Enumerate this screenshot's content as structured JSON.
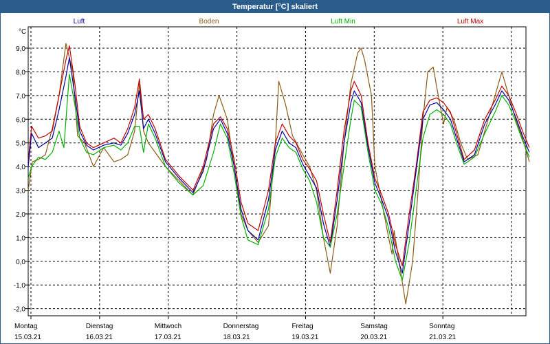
{
  "title": "Temperatur [°C] skaliert",
  "colors": {
    "titlebar": "#2a5d8c",
    "grid": "#000000"
  },
  "chart_data": {
    "type": "line",
    "title": "Temperatur [°C] skaliert",
    "ylabel": "°C",
    "ylim": [
      -2.3,
      9.9
    ],
    "yticks": [
      9.0,
      8.0,
      7.0,
      6.0,
      5.0,
      4.0,
      3.0,
      2.0,
      1.0,
      0.0,
      -1.0,
      -2.0
    ],
    "ytick_labels": [
      "9,0",
      "8,0",
      "7,0",
      "6,0",
      "5,0",
      "4,0",
      "3,0",
      "2,0",
      "1,0",
      "0,0",
      "-1,0",
      "-2,0"
    ],
    "x_unit": "days since Monday 15.03.21 00:00",
    "xlim": [
      0,
      7
    ],
    "xticks": [
      {
        "day": "Montag",
        "date": "15.03.21"
      },
      {
        "day": "Dienstag",
        "date": "16.03.21"
      },
      {
        "day": "Mittwoch",
        "date": "17.03.21"
      },
      {
        "day": "Donnerstag",
        "date": "18.03.21"
      },
      {
        "day": "Freitag",
        "date": "19.03.21"
      },
      {
        "day": "Samstag",
        "date": "20.03.21"
      },
      {
        "day": "Sonntag",
        "date": "21.03.21"
      }
    ],
    "grid": true,
    "legend_position": "top",
    "series": [
      {
        "name": "Boden",
        "color": "#8b5a14",
        "points": [
          [
            0,
            3.0
          ],
          [
            0.06,
            4.2
          ],
          [
            0.15,
            4.3
          ],
          [
            0.25,
            4.5
          ],
          [
            0.35,
            5.6
          ],
          [
            0.45,
            7.0
          ],
          [
            0.55,
            9.2
          ],
          [
            0.65,
            8.0
          ],
          [
            0.72,
            5.3
          ],
          [
            0.82,
            5.0
          ],
          [
            0.95,
            4.0
          ],
          [
            1.1,
            4.8
          ],
          [
            1.25,
            4.2
          ],
          [
            1.35,
            4.3
          ],
          [
            1.45,
            4.5
          ],
          [
            1.55,
            5.5
          ],
          [
            1.62,
            7.5
          ],
          [
            1.68,
            5.5
          ],
          [
            1.75,
            5.0
          ],
          [
            1.85,
            4.6
          ],
          [
            2.0,
            4.0
          ],
          [
            2.2,
            3.4
          ],
          [
            2.4,
            2.8
          ],
          [
            2.6,
            4.3
          ],
          [
            2.7,
            6.2
          ],
          [
            2.78,
            7.0
          ],
          [
            2.9,
            6.0
          ],
          [
            3.0,
            4.0
          ],
          [
            3.1,
            2.0
          ],
          [
            3.2,
            1.3
          ],
          [
            3.35,
            0.8
          ],
          [
            3.5,
            1.5
          ],
          [
            3.6,
            5.0
          ],
          [
            3.65,
            7.6
          ],
          [
            3.75,
            6.6
          ],
          [
            3.85,
            5.3
          ],
          [
            4.0,
            4.5
          ],
          [
            4.1,
            4.0
          ],
          [
            4.2,
            3.0
          ],
          [
            4.3,
            1.0
          ],
          [
            4.4,
            -0.5
          ],
          [
            4.5,
            1.5
          ],
          [
            4.6,
            5.0
          ],
          [
            4.7,
            7.5
          ],
          [
            4.8,
            8.8
          ],
          [
            4.85,
            9.0
          ],
          [
            4.9,
            8.5
          ],
          [
            5.0,
            7.0
          ],
          [
            5.05,
            4.0
          ],
          [
            5.15,
            2.5
          ],
          [
            5.25,
            1.0
          ],
          [
            5.3,
            0.3
          ],
          [
            5.33,
            1.3
          ],
          [
            5.4,
            0.0
          ],
          [
            5.5,
            -1.8
          ],
          [
            5.6,
            0.0
          ],
          [
            5.68,
            3.0
          ],
          [
            5.75,
            6.0
          ],
          [
            5.82,
            8.0
          ],
          [
            5.9,
            8.2
          ],
          [
            5.96,
            7.2
          ],
          [
            6.05,
            5.8
          ],
          [
            6.1,
            6.5
          ],
          [
            6.2,
            6.0
          ],
          [
            6.3,
            5.0
          ],
          [
            6.4,
            4.3
          ],
          [
            6.55,
            4.5
          ],
          [
            6.7,
            6.0
          ],
          [
            6.8,
            7.0
          ],
          [
            6.9,
            8.0
          ],
          [
            7.0,
            7.0
          ],
          [
            7.1,
            6.0
          ],
          [
            7.2,
            5.2
          ],
          [
            7.3,
            4.2
          ]
        ]
      },
      {
        "name": "Luft Max",
        "color": "#c00000",
        "points": [
          [
            0,
            4.2
          ],
          [
            0.05,
            5.7
          ],
          [
            0.15,
            5.2
          ],
          [
            0.25,
            5.3
          ],
          [
            0.35,
            5.5
          ],
          [
            0.45,
            7.0
          ],
          [
            0.55,
            8.5
          ],
          [
            0.6,
            9.1
          ],
          [
            0.68,
            7.5
          ],
          [
            0.75,
            5.7
          ],
          [
            0.85,
            5.0
          ],
          [
            0.95,
            4.8
          ],
          [
            1.1,
            5.0
          ],
          [
            1.25,
            5.2
          ],
          [
            1.35,
            5.0
          ],
          [
            1.45,
            5.6
          ],
          [
            1.55,
            6.5
          ],
          [
            1.62,
            7.7
          ],
          [
            1.68,
            6.0
          ],
          [
            1.75,
            6.2
          ],
          [
            1.85,
            5.6
          ],
          [
            2.0,
            4.3
          ],
          [
            2.2,
            3.6
          ],
          [
            2.4,
            3.0
          ],
          [
            2.55,
            4.0
          ],
          [
            2.7,
            5.8
          ],
          [
            2.8,
            6.1
          ],
          [
            2.9,
            5.6
          ],
          [
            3.0,
            4.3
          ],
          [
            3.1,
            2.5
          ],
          [
            3.2,
            1.6
          ],
          [
            3.35,
            1.3
          ],
          [
            3.5,
            3.0
          ],
          [
            3.6,
            5.0
          ],
          [
            3.7,
            5.8
          ],
          [
            3.8,
            5.3
          ],
          [
            3.9,
            5.0
          ],
          [
            4.0,
            4.3
          ],
          [
            4.1,
            3.9
          ],
          [
            4.2,
            3.4
          ],
          [
            4.3,
            2.0
          ],
          [
            4.4,
            0.8
          ],
          [
            4.5,
            3.0
          ],
          [
            4.6,
            5.5
          ],
          [
            4.7,
            7.2
          ],
          [
            4.75,
            7.6
          ],
          [
            4.85,
            7.0
          ],
          [
            4.95,
            5.0
          ],
          [
            5.05,
            3.5
          ],
          [
            5.15,
            2.8
          ],
          [
            5.25,
            2.0
          ],
          [
            5.35,
            0.7
          ],
          [
            5.45,
            -0.2
          ],
          [
            5.55,
            2.0
          ],
          [
            5.65,
            4.0
          ],
          [
            5.75,
            6.3
          ],
          [
            5.85,
            6.8
          ],
          [
            5.95,
            6.9
          ],
          [
            6.05,
            6.7
          ],
          [
            6.15,
            6.3
          ],
          [
            6.25,
            5.3
          ],
          [
            6.35,
            4.3
          ],
          [
            6.5,
            4.7
          ],
          [
            6.65,
            6.0
          ],
          [
            6.8,
            6.8
          ],
          [
            6.9,
            7.4
          ],
          [
            7.0,
            7.0
          ],
          [
            7.1,
            6.3
          ],
          [
            7.2,
            5.5
          ],
          [
            7.3,
            4.8
          ]
        ]
      },
      {
        "name": "Luft",
        "color": "#0000a0",
        "points": [
          [
            0,
            4.0
          ],
          [
            0.05,
            5.4
          ],
          [
            0.15,
            4.8
          ],
          [
            0.25,
            5.0
          ],
          [
            0.35,
            5.2
          ],
          [
            0.45,
            6.4
          ],
          [
            0.55,
            7.8
          ],
          [
            0.6,
            8.6
          ],
          [
            0.68,
            7.0
          ],
          [
            0.75,
            5.5
          ],
          [
            0.85,
            4.9
          ],
          [
            0.95,
            4.7
          ],
          [
            1.1,
            4.9
          ],
          [
            1.25,
            5.0
          ],
          [
            1.35,
            4.9
          ],
          [
            1.45,
            5.4
          ],
          [
            1.55,
            6.2
          ],
          [
            1.62,
            7.2
          ],
          [
            1.68,
            5.6
          ],
          [
            1.75,
            6.0
          ],
          [
            1.85,
            5.4
          ],
          [
            2.0,
            4.2
          ],
          [
            2.2,
            3.5
          ],
          [
            2.4,
            2.9
          ],
          [
            2.55,
            3.8
          ],
          [
            2.7,
            5.6
          ],
          [
            2.8,
            6.0
          ],
          [
            2.9,
            5.4
          ],
          [
            3.0,
            4.0
          ],
          [
            3.1,
            2.2
          ],
          [
            3.2,
            1.3
          ],
          [
            3.35,
            0.9
          ],
          [
            3.5,
            2.6
          ],
          [
            3.6,
            4.7
          ],
          [
            3.7,
            5.5
          ],
          [
            3.8,
            5.0
          ],
          [
            3.9,
            4.8
          ],
          [
            4.0,
            4.1
          ],
          [
            4.1,
            3.6
          ],
          [
            4.2,
            3.1
          ],
          [
            4.3,
            1.6
          ],
          [
            4.4,
            0.6
          ],
          [
            4.5,
            2.6
          ],
          [
            4.6,
            5.0
          ],
          [
            4.7,
            6.7
          ],
          [
            4.75,
            7.2
          ],
          [
            4.85,
            6.7
          ],
          [
            4.95,
            4.8
          ],
          [
            5.05,
            3.3
          ],
          [
            5.15,
            2.6
          ],
          [
            5.25,
            1.8
          ],
          [
            5.35,
            0.4
          ],
          [
            5.45,
            -0.5
          ],
          [
            5.55,
            1.6
          ],
          [
            5.65,
            3.8
          ],
          [
            5.75,
            6.0
          ],
          [
            5.85,
            6.6
          ],
          [
            5.95,
            6.7
          ],
          [
            6.05,
            6.4
          ],
          [
            6.15,
            6.0
          ],
          [
            6.25,
            5.1
          ],
          [
            6.35,
            4.2
          ],
          [
            6.5,
            4.5
          ],
          [
            6.65,
            5.8
          ],
          [
            6.8,
            6.6
          ],
          [
            6.9,
            7.2
          ],
          [
            7.0,
            6.8
          ],
          [
            7.1,
            6.1
          ],
          [
            7.2,
            5.3
          ],
          [
            7.3,
            4.6
          ]
        ]
      },
      {
        "name": "Luft Min",
        "color": "#00b000",
        "points": [
          [
            0,
            3.5
          ],
          [
            0.05,
            4.0
          ],
          [
            0.15,
            4.4
          ],
          [
            0.25,
            4.3
          ],
          [
            0.35,
            4.6
          ],
          [
            0.45,
            5.5
          ],
          [
            0.52,
            4.8
          ],
          [
            0.6,
            7.9
          ],
          [
            0.68,
            6.6
          ],
          [
            0.75,
            5.2
          ],
          [
            0.85,
            4.6
          ],
          [
            0.95,
            4.5
          ],
          [
            1.1,
            4.8
          ],
          [
            1.25,
            4.9
          ],
          [
            1.35,
            4.7
          ],
          [
            1.45,
            5.0
          ],
          [
            1.55,
            5.7
          ],
          [
            1.62,
            5.7
          ],
          [
            1.68,
            4.6
          ],
          [
            1.75,
            5.8
          ],
          [
            1.85,
            5.2
          ],
          [
            2.0,
            4.0
          ],
          [
            2.2,
            3.3
          ],
          [
            2.4,
            2.8
          ],
          [
            2.55,
            3.2
          ],
          [
            2.7,
            4.6
          ],
          [
            2.8,
            5.8
          ],
          [
            2.9,
            5.2
          ],
          [
            3.0,
            3.7
          ],
          [
            3.1,
            1.9
          ],
          [
            3.2,
            0.9
          ],
          [
            3.35,
            0.7
          ],
          [
            3.5,
            2.2
          ],
          [
            3.6,
            4.4
          ],
          [
            3.7,
            5.2
          ],
          [
            3.8,
            4.8
          ],
          [
            3.9,
            4.6
          ],
          [
            4.0,
            3.9
          ],
          [
            4.1,
            3.4
          ],
          [
            4.2,
            2.5
          ],
          [
            4.3,
            1.0
          ],
          [
            4.4,
            0.6
          ],
          [
            4.5,
            2.0
          ],
          [
            4.6,
            4.0
          ],
          [
            4.7,
            6.0
          ],
          [
            4.75,
            6.8
          ],
          [
            4.85,
            6.5
          ],
          [
            4.95,
            4.6
          ],
          [
            5.05,
            3.0
          ],
          [
            5.15,
            2.4
          ],
          [
            5.25,
            1.4
          ],
          [
            5.35,
            0.0
          ],
          [
            5.45,
            -0.8
          ],
          [
            5.55,
            0.8
          ],
          [
            5.65,
            3.0
          ],
          [
            5.75,
            5.2
          ],
          [
            5.85,
            6.2
          ],
          [
            5.95,
            6.4
          ],
          [
            6.05,
            6.2
          ],
          [
            6.15,
            5.8
          ],
          [
            6.25,
            4.9
          ],
          [
            6.35,
            4.1
          ],
          [
            6.5,
            4.4
          ],
          [
            6.65,
            5.4
          ],
          [
            6.8,
            6.3
          ],
          [
            6.9,
            7.0
          ],
          [
            7.0,
            6.6
          ],
          [
            7.1,
            5.9
          ],
          [
            7.2,
            5.1
          ],
          [
            7.3,
            4.4
          ]
        ]
      }
    ]
  }
}
